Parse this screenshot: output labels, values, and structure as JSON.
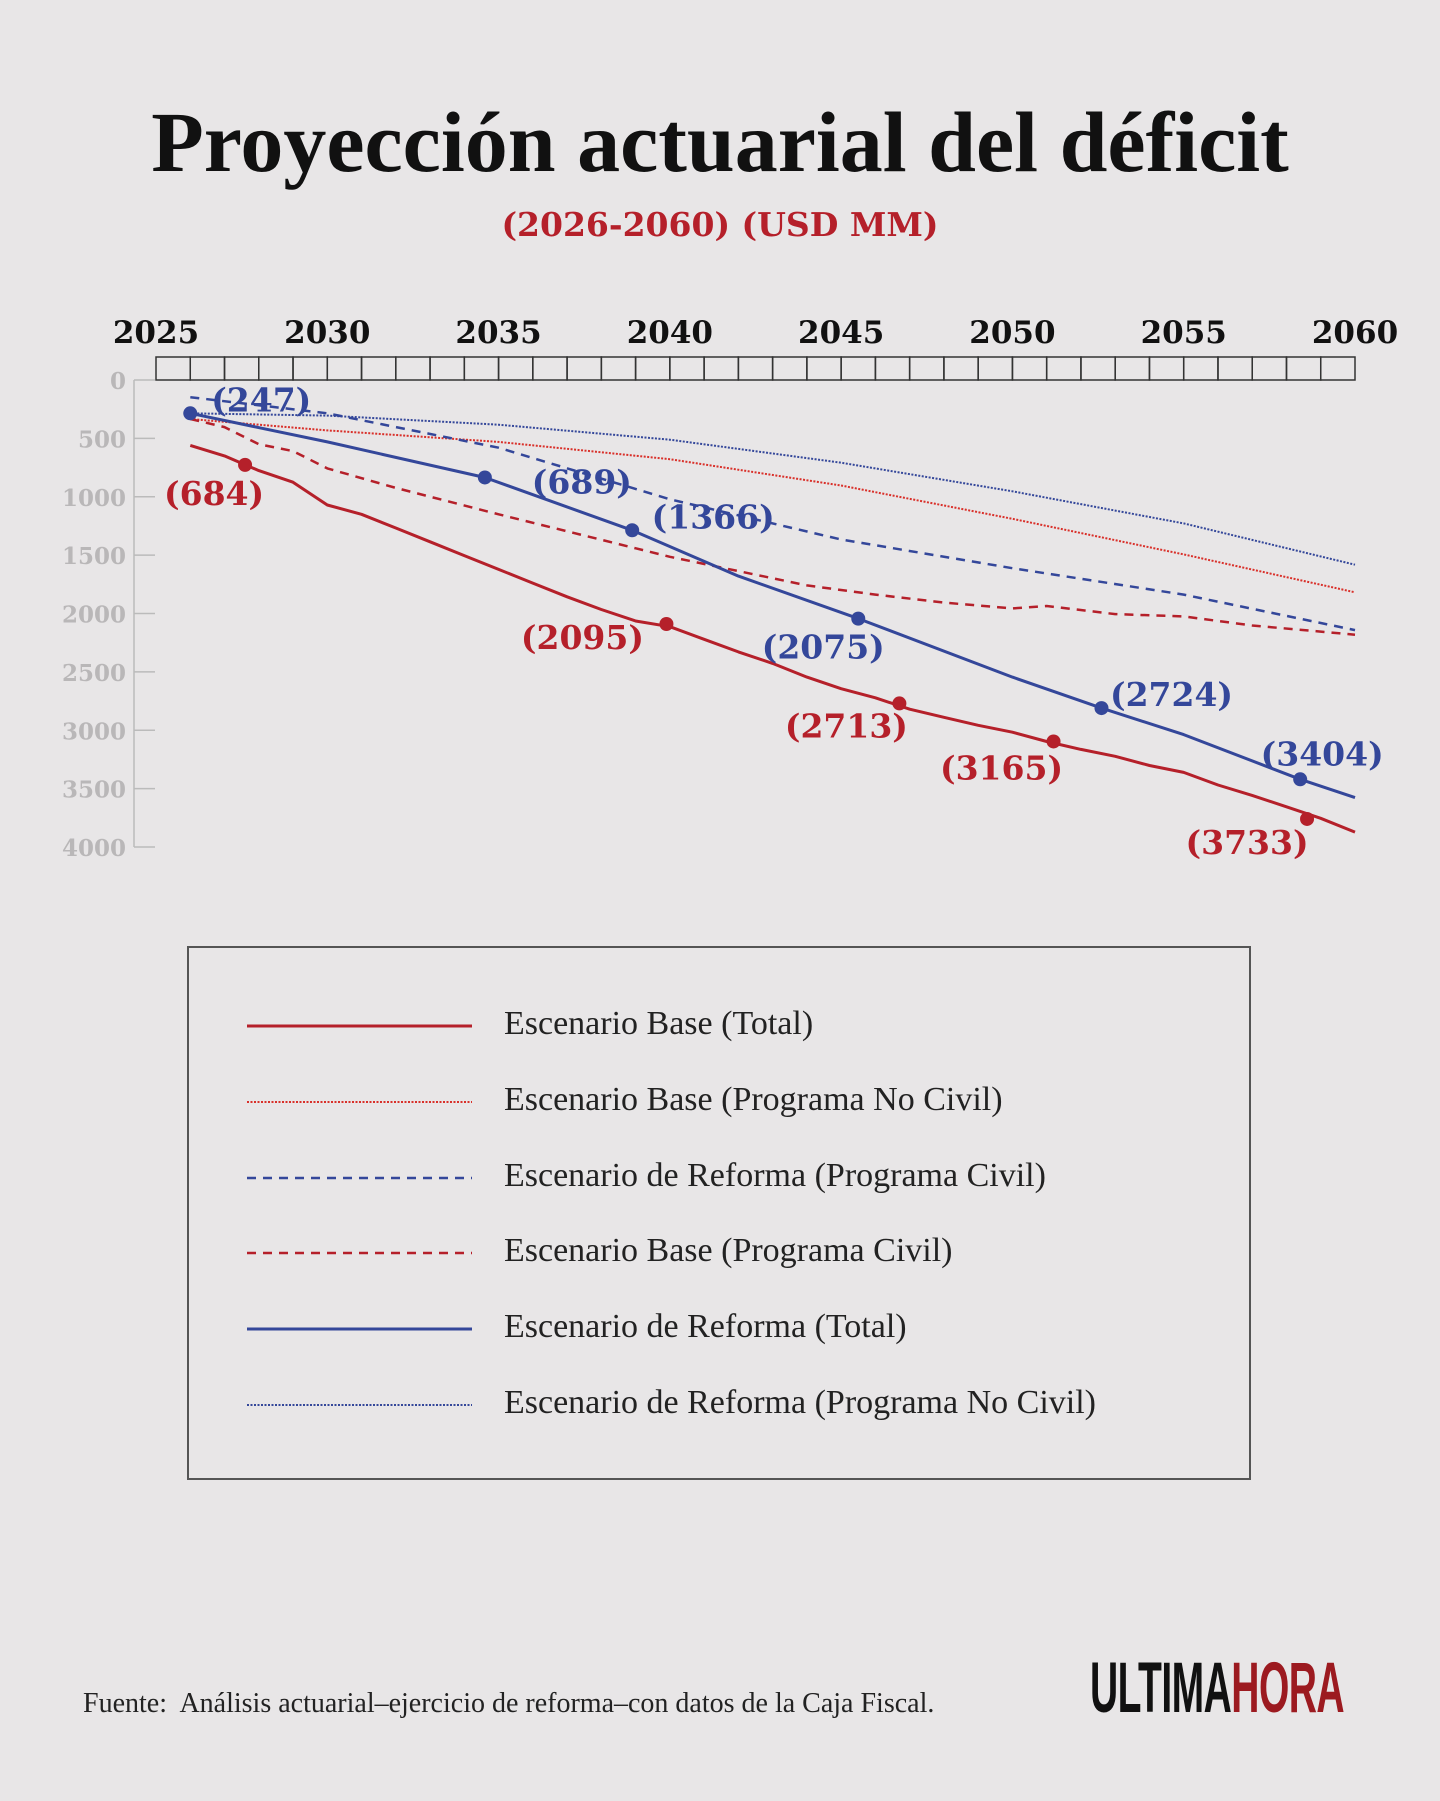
{
  "header": {
    "title": "Proyección actuarial del déficit",
    "subtitle": "(2026-2060) (USD MM)"
  },
  "chart_data": {
    "type": "line",
    "title": "Proyección actuarial del déficit",
    "subtitle": "(2026-2060) (USD MM)",
    "xlim": [
      2025,
      2060
    ],
    "ylim": [
      0,
      4000
    ],
    "y_inverted": true,
    "x_axis_position": "top",
    "x_ticks": [
      "2025",
      "2030",
      "2035",
      "2040",
      "2045",
      "2050",
      "2055",
      "2060"
    ],
    "y_ticks": [
      "0",
      "500",
      "1000",
      "1500",
      "2000",
      "2500",
      "3000",
      "3500",
      "4000"
    ],
    "grid": false,
    "legend_placement": "bottom",
    "series": [
      {
        "name": "Escenario Base (Total)",
        "color": "#b5202a",
        "style": "solid",
        "x": [
          2026,
          2027,
          2028,
          2029,
          2030,
          2031,
          2032,
          2033,
          2034,
          2035,
          2036,
          2037,
          2038,
          2039,
          2040,
          2041,
          2042,
          2043,
          2044,
          2045,
          2046,
          2047,
          2048,
          2049,
          2050,
          2051,
          2052,
          2053,
          2054,
          2055,
          2056,
          2057,
          2058,
          2059,
          2060
        ],
        "y": [
          560,
          650,
          776,
          875,
          1071,
          1150,
          1268,
          1386,
          1504,
          1622,
          1740,
          1857,
          1966,
          2064,
          2113,
          2221,
          2329,
          2427,
          2545,
          2644,
          2722,
          2820,
          2889,
          2958,
          3017,
          3096,
          3164,
          3223,
          3302,
          3361,
          3469,
          3558,
          3656,
          3754,
          3872
        ],
        "annotations": [
          {
            "x": 2027.6,
            "y": 727,
            "label": "(684)"
          },
          {
            "x": 2039.9,
            "y": 2090,
            "label": "(2095)"
          },
          {
            "x": 2046.7,
            "y": 2770,
            "label": "(2713)"
          },
          {
            "x": 2051.2,
            "y": 3096,
            "label": "(3165)"
          },
          {
            "x": 2058.6,
            "y": 3760,
            "label": "(3733)"
          }
        ]
      },
      {
        "name": "Escenario Base (Programa No Civil)",
        "color": "#d9302a",
        "style": "dotted",
        "x": [
          2026,
          2030,
          2035,
          2040,
          2045,
          2050,
          2055,
          2060
        ],
        "y": [
          334,
          432,
          530,
          678,
          904,
          1189,
          1494,
          1818
        ],
        "annotations": []
      },
      {
        "name": "Escenario de Reforma (Programa Civil)",
        "color": "#34479a",
        "style": "dashed",
        "x": [
          2026,
          2030,
          2035,
          2040,
          2045,
          2050,
          2055,
          2060
        ],
        "y": [
          147,
          285,
          580,
          1022,
          1366,
          1612,
          1838,
          2142
        ],
        "annotations": []
      },
      {
        "name": "Escenario Base (Programa Civil)",
        "color": "#b5202a",
        "style": "dashed",
        "x": [
          2026,
          2027,
          2028,
          2029,
          2030,
          2032,
          2035,
          2040,
          2044,
          2046,
          2048,
          2050,
          2051,
          2053,
          2055,
          2057,
          2060
        ],
        "y": [
          334,
          403,
          550,
          609,
          757,
          924,
          1150,
          1514,
          1759,
          1838,
          1907,
          1956,
          1936,
          2005,
          2025,
          2103,
          2182
        ],
        "annotations": []
      },
      {
        "name": "Escenario de Reforma (Total)",
        "color": "#34479a",
        "style": "solid",
        "x": [
          2026,
          2030,
          2034.6,
          2038.9,
          2042,
          2045.5,
          2050,
          2052.6,
          2055,
          2058.4,
          2060
        ],
        "y": [
          285,
          530,
          835,
          1287,
          1680,
          2044,
          2545,
          2810,
          3037,
          3420,
          3577
        ],
        "annotations": [
          {
            "x": 2026,
            "y": 285,
            "label": "(247)"
          },
          {
            "x": 2034.6,
            "y": 835,
            "label": "(689)"
          },
          {
            "x": 2038.9,
            "y": 1287,
            "label": "(1366)"
          },
          {
            "x": 2045.5,
            "y": 2044,
            "label": "(2075)"
          },
          {
            "x": 2052.6,
            "y": 2810,
            "label": "(2724)"
          },
          {
            "x": 2058.4,
            "y": 3420,
            "label": "(3404)"
          }
        ]
      },
      {
        "name": "Escenario de Reforma (Programa No Civil)",
        "color": "#34479a",
        "style": "dotted",
        "x": [
          2026,
          2030,
          2035,
          2040,
          2045,
          2050,
          2055,
          2060
        ],
        "y": [
          285,
          305,
          383,
          511,
          708,
          953,
          1228,
          1582
        ],
        "annotations": []
      }
    ]
  },
  "footer": {
    "source": "Fuente:  Análisis actuarial–ejercicio de reforma–con datos de la Caja Fiscal."
  },
  "logo": {
    "part1": "ULTIMA",
    "part2": "HORA"
  }
}
